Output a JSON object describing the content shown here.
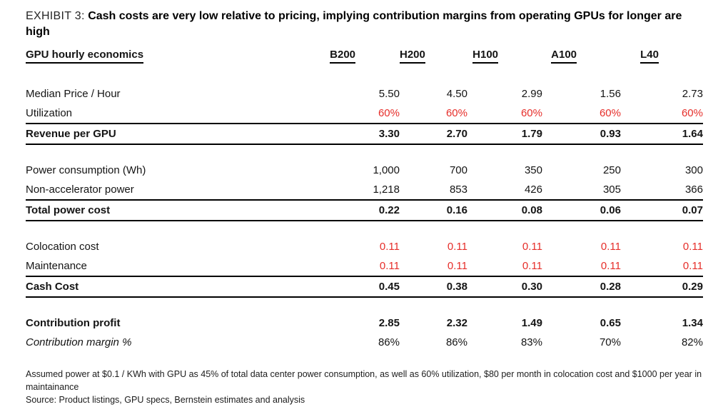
{
  "exhibit": {
    "label": "EXHIBIT 3:",
    "title": "Cash costs are very low relative to pricing, implying contribution margins from operating GPUs for longer are high"
  },
  "chart_data": {
    "type": "table",
    "title": "GPU hourly economics",
    "columns": [
      "B200",
      "H200",
      "H100",
      "A100",
      "L40"
    ],
    "sections": [
      {
        "name": "pricing",
        "rows": [
          {
            "label": "Median Price / Hour",
            "values": [
              "5.50",
              "4.50",
              "2.99",
              "1.56",
              "2.73"
            ]
          },
          {
            "label": "Utilization",
            "values": [
              "60%",
              "60%",
              "60%",
              "60%",
              "60%"
            ],
            "value_color": "red"
          },
          {
            "label": "Revenue per GPU",
            "values": [
              "3.30",
              "2.70",
              "1.79",
              "0.93",
              "1.64"
            ],
            "emphasis": "subtotal"
          }
        ]
      },
      {
        "name": "power",
        "rows": [
          {
            "label": "Power consumption (Wh)",
            "values": [
              "1,000",
              "700",
              "350",
              "250",
              "300"
            ]
          },
          {
            "label": "Non-accelerator power",
            "values": [
              "1,218",
              "853",
              "426",
              "305",
              "366"
            ]
          },
          {
            "label": "Total power cost",
            "values": [
              "0.22",
              "0.16",
              "0.08",
              "0.06",
              "0.07"
            ],
            "emphasis": "subtotal"
          }
        ]
      },
      {
        "name": "cash-costs",
        "rows": [
          {
            "label": "Colocation cost",
            "values": [
              "0.11",
              "0.11",
              "0.11",
              "0.11",
              "0.11"
            ],
            "value_color": "red"
          },
          {
            "label": "Maintenance",
            "values": [
              "0.11",
              "0.11",
              "0.11",
              "0.11",
              "0.11"
            ],
            "value_color": "red"
          },
          {
            "label": "Cash Cost",
            "values": [
              "0.45",
              "0.38",
              "0.30",
              "0.28",
              "0.29"
            ],
            "emphasis": "subtotal"
          }
        ]
      },
      {
        "name": "profitability",
        "rows": [
          {
            "label": "Contribution profit",
            "values": [
              "2.85",
              "2.32",
              "1.49",
              "0.65",
              "1.34"
            ],
            "emphasis": "bold"
          },
          {
            "label": "Contribution margin %",
            "values": [
              "86%",
              "86%",
              "83%",
              "70%",
              "82%"
            ],
            "label_style": "italic"
          }
        ]
      }
    ]
  },
  "footnotes": {
    "assumptions": "Assumed power at $0.1 / KWh with GPU as 45% of total data center power consumption, as well as 60% utilization, $80 per month in colocation cost and $1000 per year in maintainance",
    "source": "Source: Product listings, GPU specs, Bernstein estimates and analysis"
  },
  "colors": {
    "red_text": "#e62e2a",
    "text": "#141414"
  }
}
